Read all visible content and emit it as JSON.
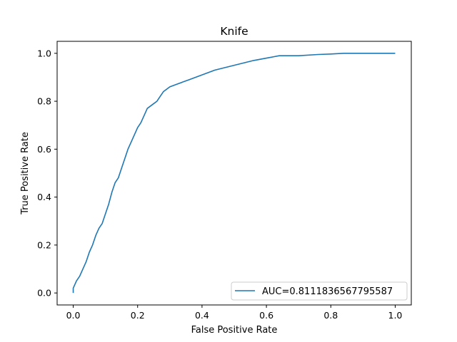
{
  "chart_data": {
    "type": "line",
    "title": "Knife",
    "xlabel": "False Positive Rate",
    "ylabel": "True Positive Rate",
    "xlim": [
      -0.05,
      1.05
    ],
    "ylim": [
      -0.05,
      1.05
    ],
    "xticks": [
      0.0,
      0.2,
      0.4,
      0.6,
      0.8,
      1.0
    ],
    "yticks": [
      0.0,
      0.2,
      0.4,
      0.6,
      0.8,
      1.0
    ],
    "xtick_labels": [
      "0.0",
      "0.2",
      "0.4",
      "0.6",
      "0.8",
      "1.0"
    ],
    "ytick_labels": [
      "0.0",
      "0.2",
      "0.4",
      "0.6",
      "0.8",
      "1.0"
    ],
    "grid": false,
    "legend_position": "lower-right",
    "series": [
      {
        "name": "AUC=0.8111836567795587",
        "color": "#1f77b4",
        "x": [
          0.0,
          0.0,
          0.01,
          0.02,
          0.03,
          0.04,
          0.05,
          0.06,
          0.07,
          0.08,
          0.09,
          0.1,
          0.11,
          0.12,
          0.13,
          0.14,
          0.15,
          0.16,
          0.17,
          0.18,
          0.19,
          0.2,
          0.21,
          0.22,
          0.23,
          0.24,
          0.25,
          0.26,
          0.27,
          0.28,
          0.3,
          0.32,
          0.34,
          0.36,
          0.38,
          0.4,
          0.42,
          0.44,
          0.47,
          0.5,
          0.53,
          0.56,
          0.6,
          0.62,
          0.64,
          0.7,
          0.76,
          0.8,
          0.84,
          0.9,
          1.0
        ],
        "y": [
          0.0,
          0.02,
          0.05,
          0.07,
          0.1,
          0.13,
          0.17,
          0.2,
          0.24,
          0.27,
          0.29,
          0.33,
          0.37,
          0.42,
          0.46,
          0.48,
          0.52,
          0.56,
          0.6,
          0.63,
          0.66,
          0.69,
          0.71,
          0.74,
          0.77,
          0.78,
          0.79,
          0.8,
          0.82,
          0.84,
          0.86,
          0.87,
          0.88,
          0.89,
          0.9,
          0.91,
          0.92,
          0.93,
          0.94,
          0.95,
          0.96,
          0.97,
          0.98,
          0.985,
          0.99,
          0.99,
          0.995,
          0.997,
          1.0,
          1.0,
          1.0
        ]
      }
    ]
  }
}
